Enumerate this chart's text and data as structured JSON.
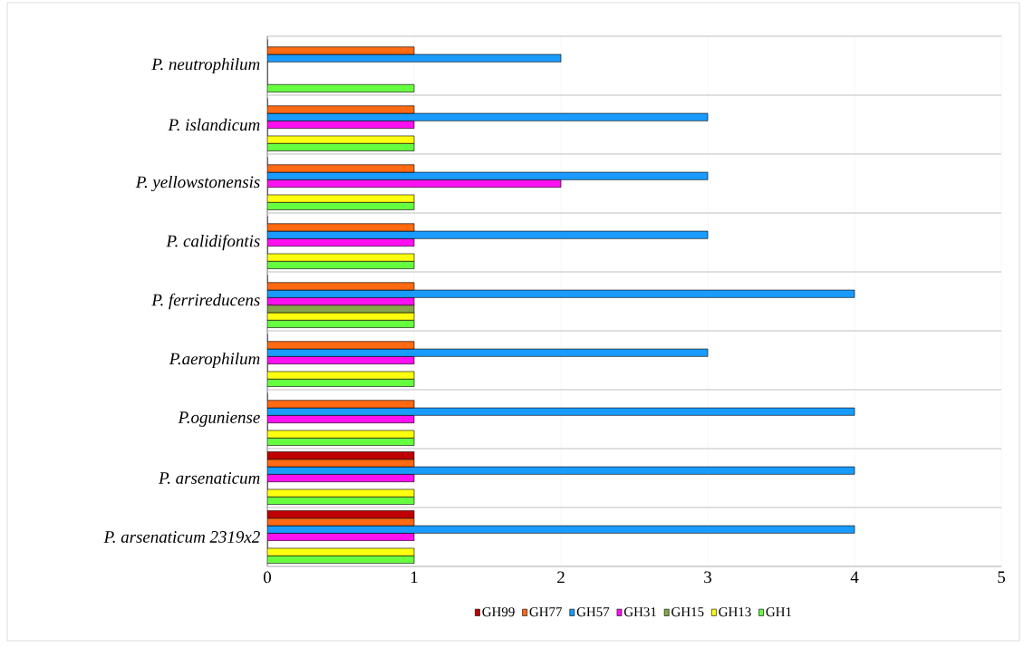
{
  "chart_data": {
    "type": "bar",
    "orientation": "horizontal",
    "categories": [
      "*P. neutrophilum*",
      "*P. islandicum*",
      "*P. yellowstonensis*",
      "*P. calidifontis*",
      "*P. ferrireducens*",
      "*P.aerophilum*",
      "*P.oguniense*",
      "*P. arsenaticum*",
      "*P. arsenaticum 2319x2*"
    ],
    "series": [
      {
        "name": "GH99",
        "color": "#c00000",
        "values": [
          0,
          0,
          0,
          0,
          0,
          0,
          0,
          1,
          1
        ]
      },
      {
        "name": "GH77",
        "color": "#ff6a13",
        "values": [
          1,
          1,
          1,
          1,
          1,
          1,
          1,
          1,
          1
        ]
      },
      {
        "name": "GH57",
        "color": "#1a9bff",
        "values": [
          2,
          3,
          3,
          3,
          4,
          3,
          4,
          4,
          4
        ]
      },
      {
        "name": "GH31",
        "color": "#ff10f0",
        "values": [
          0,
          1,
          2,
          1,
          1,
          1,
          1,
          1,
          1
        ]
      },
      {
        "name": "GH15",
        "color": "#86a44a",
        "values": [
          0,
          0,
          0,
          0,
          1,
          0,
          0,
          0,
          0
        ]
      },
      {
        "name": "GH13",
        "color": "#ffff10",
        "values": [
          0,
          1,
          1,
          1,
          1,
          1,
          1,
          1,
          1
        ]
      },
      {
        "name": "GH1",
        "color": "#66ff40",
        "values": [
          1,
          1,
          1,
          1,
          1,
          1,
          1,
          1,
          1
        ]
      }
    ],
    "xlim": [
      0,
      5
    ],
    "xticks": [
      0,
      1,
      2,
      3,
      4,
      5
    ],
    "grid": true,
    "legend": "bottom"
  }
}
